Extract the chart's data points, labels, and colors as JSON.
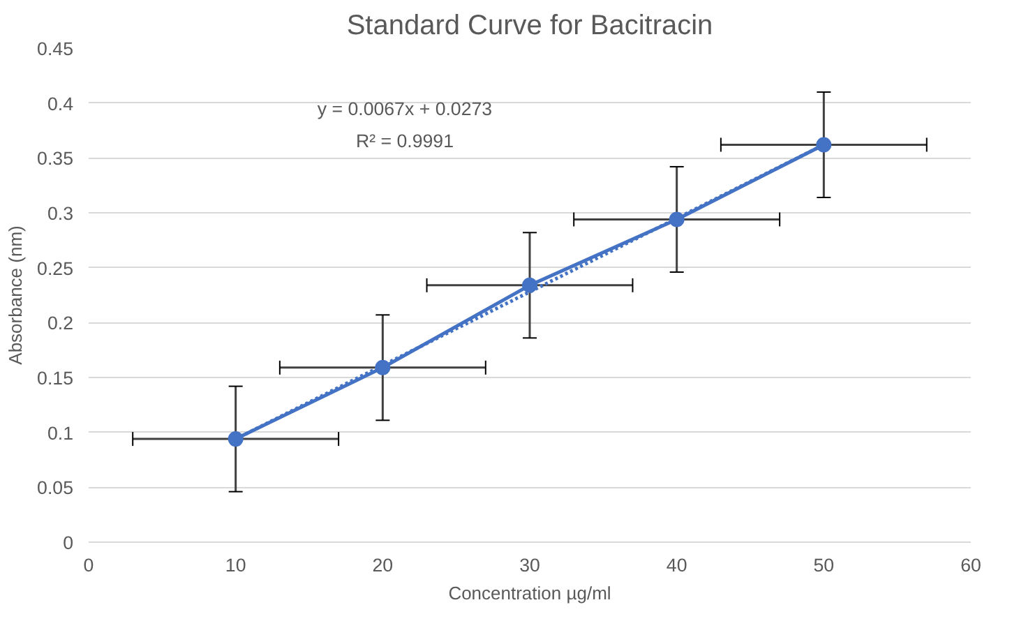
{
  "chart_data": {
    "type": "line",
    "title": "Standard Curve for Bacitracin",
    "xlabel": "Concentration µg/ml",
    "ylabel": "Absorbance (nm)",
    "x": [
      10,
      20,
      30,
      40,
      50
    ],
    "series": [
      {
        "color": "#4472c4",
        "marker": "circle",
        "line_style": "solid",
        "values": [
          0.094,
          0.159,
          0.234,
          0.294,
          0.362
        ],
        "errors": [
          0.048,
          0.048,
          0.048,
          0.048,
          0.048
        ],
        "xerrors": [
          7,
          7,
          7,
          7,
          7
        ]
      },
      {
        "color": "#4472c4",
        "line_style": "dotted",
        "x": [
          10,
          50
        ],
        "values": [
          0.094,
          0.362
        ]
      }
    ],
    "annotations": [
      "y = 0.0067x + 0.0273",
      "R² = 0.9991"
    ],
    "xlim": [
      0,
      60
    ],
    "xticks": [
      0,
      10,
      20,
      30,
      40,
      50,
      60
    ],
    "ylim": [
      0,
      0.45
    ],
    "yticks": [
      0,
      0.05,
      0.1,
      0.15,
      0.2,
      0.25,
      0.3,
      0.35,
      0.4,
      0.45
    ],
    "grid": "y"
  }
}
